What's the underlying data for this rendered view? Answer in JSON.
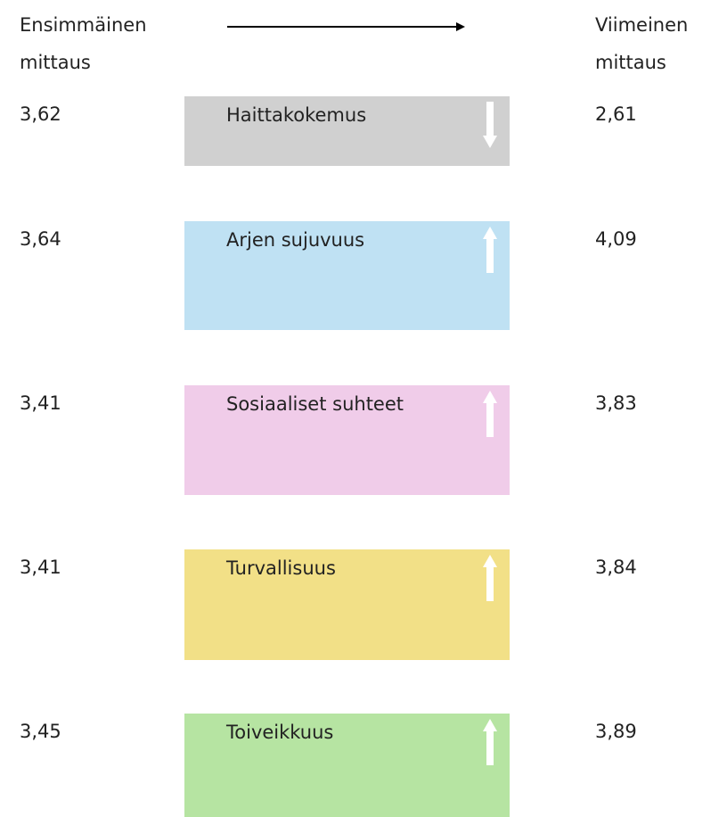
{
  "header": {
    "first": [
      "Ensimmäinen",
      "mittaus"
    ],
    "last": [
      "Viimeinen",
      "mittaus"
    ]
  },
  "rows": [
    {
      "first": "3,62",
      "label": "Haittakokemus",
      "last": "2,61"
    },
    {
      "first": "3,64",
      "label": "Arjen sujuvuus",
      "last": "4,09"
    },
    {
      "first": "3,41",
      "label": "Sosiaaliset suhteet",
      "last": "3,83"
    },
    {
      "first": "3,41",
      "label": "Turvallisuus",
      "last": "3,84"
    },
    {
      "first": "3,45",
      "label": "Toiveikkuus",
      "last": "3,89"
    }
  ]
}
